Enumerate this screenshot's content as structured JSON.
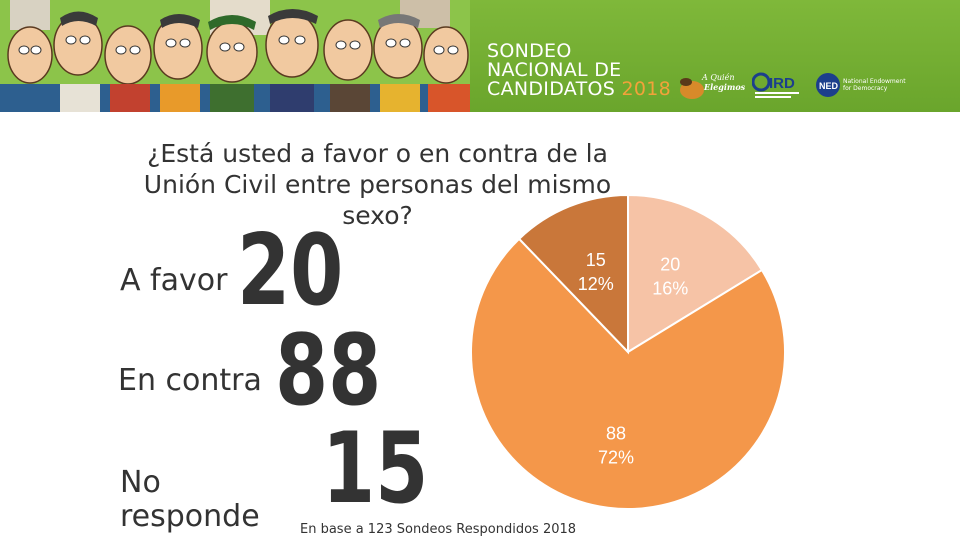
{
  "banner": {
    "title_line1": "SONDEO",
    "title_line2": "NACIONAL DE",
    "title_line3": "CANDIDATOS",
    "title_year": "2018",
    "sponsors": [
      {
        "name": "A Quién Elegimos"
      },
      {
        "name": "IRD"
      },
      {
        "name": "NED",
        "caption": "National Endowment for Democracy"
      }
    ],
    "colors": {
      "background": "#74ad32",
      "year": "#f2a23a"
    }
  },
  "question": "¿Está usted a favor o en contra de la Unión Civil entre personas del mismo sexo?",
  "rows": [
    {
      "label": "A favor",
      "value": "20"
    },
    {
      "label": "En contra",
      "value": "88"
    },
    {
      "label": "No responde",
      "value": "15"
    }
  ],
  "footnote": "En base a 123 Sondeos Respondidos 2018",
  "chart_data": {
    "type": "pie",
    "categories": [
      "A favor",
      "En contra",
      "No responde"
    ],
    "values": [
      20,
      88,
      15
    ],
    "percent_labels": [
      "16%",
      "72%",
      "12%"
    ],
    "value_labels": [
      "20",
      "88",
      "15"
    ],
    "colors": [
      "#f6c3a6",
      "#f4974a",
      "#c9773a"
    ],
    "title": "¿Está usted a favor o en contra de la Unión Civil entre personas del mismo sexo?"
  }
}
